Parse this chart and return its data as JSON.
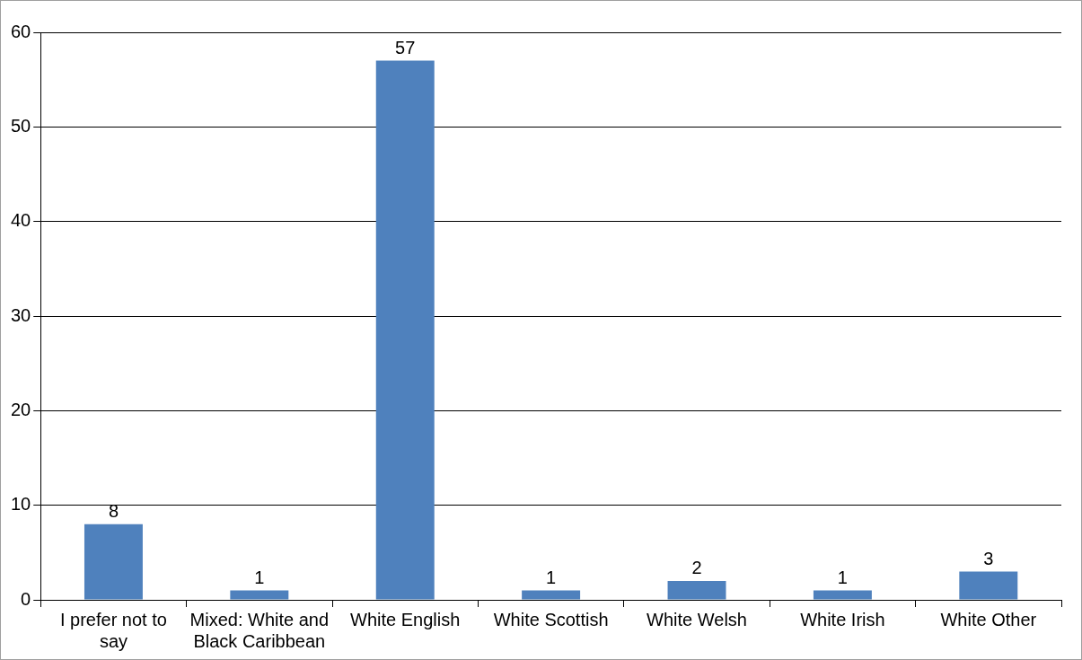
{
  "chart_data": {
    "type": "bar",
    "categories": [
      "I prefer not to say",
      "Mixed: White and Black Caribbean",
      "White English",
      "White Scottish",
      "White Welsh",
      "White Irish",
      "White Other"
    ],
    "values": [
      8,
      1,
      57,
      1,
      2,
      1,
      3
    ],
    "color": "#4f81bd",
    "ylim": [
      0,
      60
    ],
    "yticks": [
      0,
      10,
      20,
      30,
      40,
      50,
      60
    ],
    "grid": "y",
    "data_labels": true,
    "legend": false
  }
}
